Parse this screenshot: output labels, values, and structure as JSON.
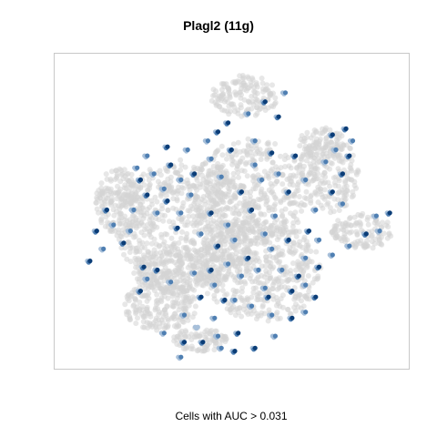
{
  "chart_data": {
    "type": "scatter",
    "title": "Plagl2 (11g)",
    "caption": "Cells with AUC > 0.031",
    "xlim": [
      0,
      100
    ],
    "ylim": [
      0,
      100
    ],
    "grid": false,
    "axes_shown": false,
    "colors": {
      "background_cells": "#d3d3d3",
      "high_auc": "#0b3d77",
      "mid_auc": "#4f7fb2",
      "low_auc": "#a7bfd9"
    },
    "background_regions": [
      {
        "cx": 36,
        "cy": 55,
        "rx": 21,
        "ry": 22,
        "n": 700
      },
      {
        "cx": 58,
        "cy": 70,
        "rx": 18,
        "ry": 17,
        "n": 500
      },
      {
        "cx": 55,
        "cy": 44,
        "rx": 17,
        "ry": 18,
        "n": 450
      },
      {
        "cx": 16,
        "cy": 47,
        "rx": 7,
        "ry": 11,
        "n": 180
      },
      {
        "cx": 28,
        "cy": 82,
        "rx": 11,
        "ry": 8,
        "n": 200
      },
      {
        "cx": 40,
        "cy": 93,
        "rx": 8,
        "ry": 4,
        "n": 90
      },
      {
        "cx": 78,
        "cy": 38,
        "rx": 9,
        "ry": 13,
        "n": 200
      },
      {
        "cx": 88,
        "cy": 57,
        "rx": 9,
        "ry": 6,
        "n": 120
      },
      {
        "cx": 76,
        "cy": 28,
        "rx": 7,
        "ry": 6,
        "n": 80
      },
      {
        "cx": 53,
        "cy": 12,
        "rx": 10,
        "ry": 7,
        "n": 150
      },
      {
        "cx": 32,
        "cy": 70,
        "rx": 12,
        "ry": 8,
        "n": 180
      }
    ],
    "highlighted_points": [
      {
        "x": 35,
        "y": 94,
        "v": 3
      },
      {
        "x": 40.5,
        "y": 94,
        "v": 3
      },
      {
        "x": 45,
        "y": 92,
        "v": 2
      },
      {
        "x": 51,
        "y": 91,
        "v": 3
      },
      {
        "x": 29,
        "y": 91,
        "v": 2
      },
      {
        "x": 39,
        "y": 89,
        "v": 1
      },
      {
        "x": 44,
        "y": 86,
        "v": 2
      },
      {
        "x": 60,
        "y": 79,
        "v": 3
      },
      {
        "x": 59,
        "y": 76,
        "v": 2
      },
      {
        "x": 50,
        "y": 80,
        "v": 2
      },
      {
        "x": 22,
        "y": 77,
        "v": 3
      },
      {
        "x": 24,
        "y": 73,
        "v": 2
      },
      {
        "x": 27,
        "y": 70,
        "v": 3
      },
      {
        "x": 31,
        "y": 74,
        "v": 2
      },
      {
        "x": 23,
        "y": 69,
        "v": 3
      },
      {
        "x": 38,
        "y": 71,
        "v": 2
      },
      {
        "x": 43,
        "y": 70,
        "v": 3
      },
      {
        "x": 48,
        "y": 68,
        "v": 2
      },
      {
        "x": 54,
        "y": 66,
        "v": 3
      },
      {
        "x": 61,
        "y": 63,
        "v": 2
      },
      {
        "x": 7,
        "y": 67,
        "v": 3
      },
      {
        "x": 11,
        "y": 63,
        "v": 2
      },
      {
        "x": 9,
        "y": 57,
        "v": 3
      },
      {
        "x": 14,
        "y": 55,
        "v": 2
      },
      {
        "x": 17,
        "y": 61,
        "v": 3
      },
      {
        "x": 19,
        "y": 57,
        "v": 2
      },
      {
        "x": 12,
        "y": 50,
        "v": 3
      },
      {
        "x": 20,
        "y": 50,
        "v": 2
      },
      {
        "x": 24,
        "y": 45,
        "v": 3
      },
      {
        "x": 27,
        "y": 51,
        "v": 2
      },
      {
        "x": 30,
        "y": 47,
        "v": 3
      },
      {
        "x": 34,
        "y": 51,
        "v": 2
      },
      {
        "x": 37,
        "y": 45,
        "v": 2
      },
      {
        "x": 22,
        "y": 40,
        "v": 3
      },
      {
        "x": 26,
        "y": 38,
        "v": 2
      },
      {
        "x": 31,
        "y": 35,
        "v": 3
      },
      {
        "x": 34,
        "y": 40,
        "v": 2
      },
      {
        "x": 38,
        "y": 38,
        "v": 3
      },
      {
        "x": 43,
        "y": 33,
        "v": 2
      },
      {
        "x": 46,
        "y": 39,
        "v": 2
      },
      {
        "x": 49,
        "y": 30,
        "v": 3
      },
      {
        "x": 56,
        "y": 27,
        "v": 2
      },
      {
        "x": 61,
        "y": 31,
        "v": 3
      },
      {
        "x": 56,
        "y": 35,
        "v": 2
      },
      {
        "x": 63,
        "y": 38,
        "v": 2
      },
      {
        "x": 66,
        "y": 44,
        "v": 3
      },
      {
        "x": 62,
        "y": 52,
        "v": 2
      },
      {
        "x": 55,
        "y": 50,
        "v": 3
      },
      {
        "x": 48,
        "y": 55,
        "v": 2
      },
      {
        "x": 43,
        "y": 51,
        "v": 3
      },
      {
        "x": 59,
        "y": 58,
        "v": 2
      },
      {
        "x": 66,
        "y": 60,
        "v": 3
      },
      {
        "x": 71,
        "y": 66,
        "v": 2
      },
      {
        "x": 69,
        "y": 72,
        "v": 3
      },
      {
        "x": 64,
        "y": 70,
        "v": 2
      },
      {
        "x": 72,
        "y": 57,
        "v": 3
      },
      {
        "x": 74,
        "y": 50,
        "v": 2
      },
      {
        "x": 79,
        "y": 44,
        "v": 3
      },
      {
        "x": 82,
        "y": 38,
        "v": 3
      },
      {
        "x": 80,
        "y": 30,
        "v": 2
      },
      {
        "x": 79,
        "y": 25,
        "v": 3
      },
      {
        "x": 83,
        "y": 23,
        "v": 3
      },
      {
        "x": 77,
        "y": 34,
        "v": 2
      },
      {
        "x": 84,
        "y": 32,
        "v": 3
      },
      {
        "x": 85,
        "y": 27,
        "v": 2
      },
      {
        "x": 82,
        "y": 48,
        "v": 2
      },
      {
        "x": 96,
        "y": 51,
        "v": 3
      },
      {
        "x": 92,
        "y": 52,
        "v": 2
      },
      {
        "x": 93,
        "y": 57,
        "v": 2
      },
      {
        "x": 75,
        "y": 69,
        "v": 3
      },
      {
        "x": 79,
        "y": 65,
        "v": 2
      },
      {
        "x": 35,
        "y": 85,
        "v": 2
      },
      {
        "x": 34,
        "y": 99,
        "v": 2
      },
      {
        "x": 50,
        "y": 97,
        "v": 3
      },
      {
        "x": 56,
        "y": 96,
        "v": 3
      },
      {
        "x": 55,
        "y": 82,
        "v": 2
      },
      {
        "x": 67,
        "y": 86,
        "v": 3
      },
      {
        "x": 71,
        "y": 84,
        "v": 2
      },
      {
        "x": 74,
        "y": 79,
        "v": 3
      },
      {
        "x": 61,
        "y": 85,
        "v": 2
      },
      {
        "x": 40,
        "y": 79,
        "v": 3
      },
      {
        "x": 44,
        "y": 75,
        "v": 2
      },
      {
        "x": 47,
        "y": 80,
        "v": 3
      },
      {
        "x": 52,
        "y": 72,
        "v": 2
      },
      {
        "x": 57,
        "y": 70,
        "v": 2
      },
      {
        "x": 67,
        "y": 77,
        "v": 3
      },
      {
        "x": 71,
        "y": 75,
        "v": 2
      },
      {
        "x": 63,
        "y": 19,
        "v": 3
      },
      {
        "x": 65,
        "y": 11,
        "v": 2
      },
      {
        "x": 59,
        "y": 14,
        "v": 3
      },
      {
        "x": 54,
        "y": 18,
        "v": 2
      },
      {
        "x": 48,
        "y": 21,
        "v": 3
      },
      {
        "x": 42,
        "y": 27,
        "v": 2
      },
      {
        "x": 45,
        "y": 24,
        "v": 3
      },
      {
        "x": 36,
        "y": 30,
        "v": 2
      },
      {
        "x": 30,
        "y": 29,
        "v": 3
      },
      {
        "x": 24,
        "y": 32,
        "v": 2
      },
      {
        "x": 21,
        "y": 36,
        "v": 2
      },
      {
        "x": 29,
        "y": 43,
        "v": 2
      },
      {
        "x": 33,
        "y": 56,
        "v": 3
      },
      {
        "x": 40,
        "y": 58,
        "v": 2
      },
      {
        "x": 45,
        "y": 62,
        "v": 3
      },
      {
        "x": 50,
        "y": 60,
        "v": 2
      },
      {
        "x": 52,
        "y": 44,
        "v": 3
      },
      {
        "x": 58,
        "y": 40,
        "v": 2
      },
      {
        "x": 68,
        "y": 32,
        "v": 3
      },
      {
        "x": 71,
        "y": 40,
        "v": 2
      },
      {
        "x": 75,
        "y": 60,
        "v": 2
      },
      {
        "x": 89,
        "y": 58,
        "v": 3
      },
      {
        "x": 84,
        "y": 62,
        "v": 2
      },
      {
        "x": 62,
        "y": 92,
        "v": 2
      },
      {
        "x": 46,
        "y": 96,
        "v": 2
      }
    ]
  }
}
